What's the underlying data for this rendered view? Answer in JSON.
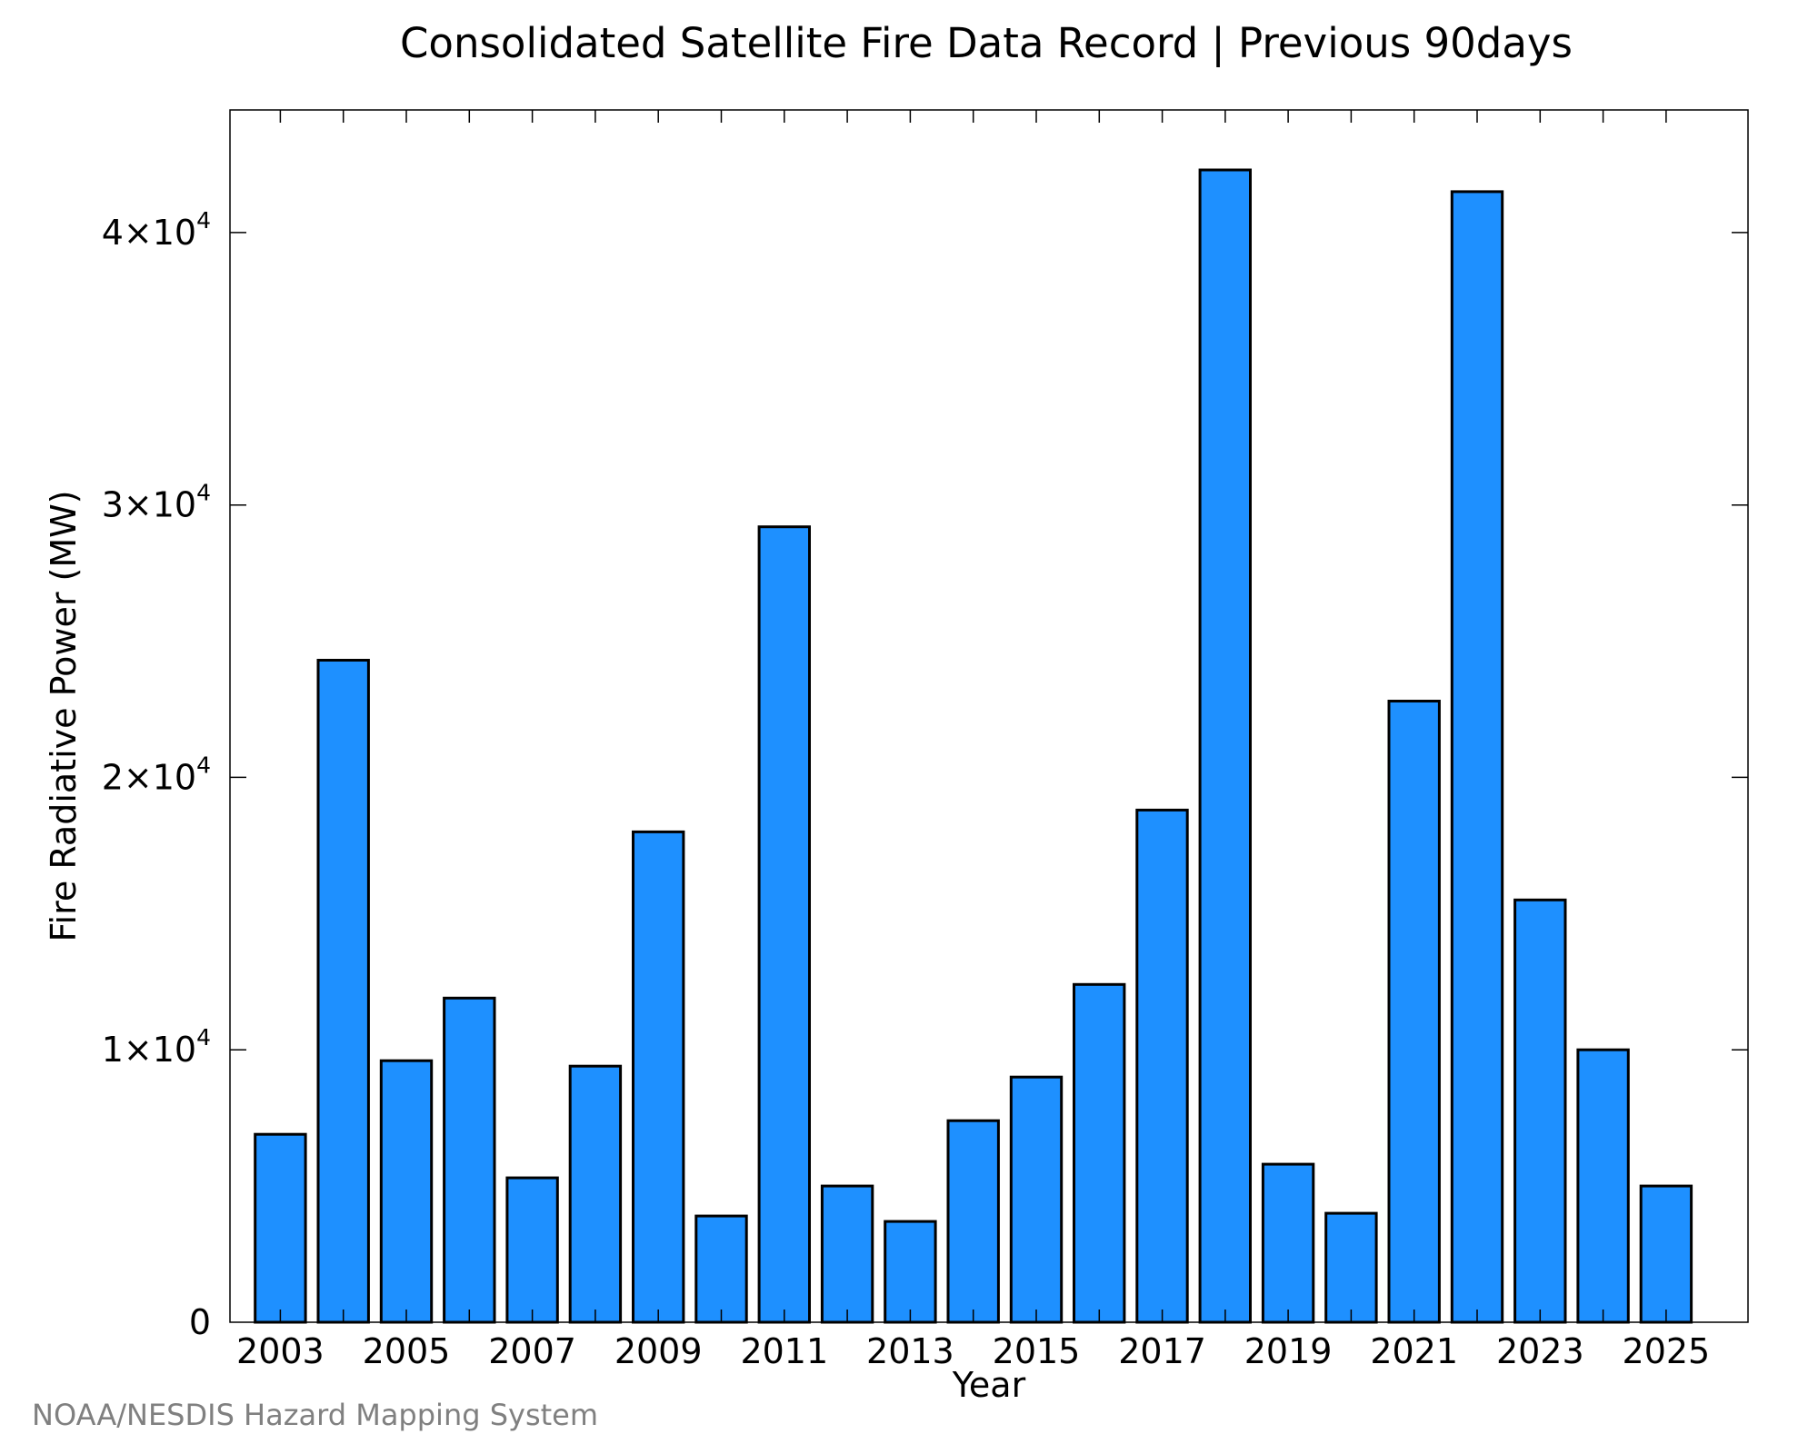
{
  "chart_data": {
    "type": "bar",
    "title": "Consolidated Satellite Fire Data Record | Previous 90days",
    "xlabel": "Year",
    "ylabel": "Fire Radiative Power (MW)",
    "categories": [
      "2003",
      "2004",
      "2005",
      "2006",
      "2007",
      "2008",
      "2009",
      "2010",
      "2011",
      "2012",
      "2013",
      "2014",
      "2015",
      "2016",
      "2017",
      "2018",
      "2019",
      "2020",
      "2021",
      "2022",
      "2023",
      "2024",
      "2025"
    ],
    "values": [
      6900,
      24300,
      9600,
      11900,
      5300,
      9400,
      18000,
      3900,
      29200,
      5000,
      3700,
      7400,
      9000,
      12400,
      18800,
      42300,
      5800,
      4000,
      22800,
      41500,
      15500,
      10000,
      5000
    ],
    "x_tick_labels": [
      "2003",
      "2005",
      "2007",
      "2009",
      "2011",
      "2013",
      "2015",
      "2017",
      "2019",
      "2021",
      "2023",
      "2025"
    ],
    "y_ticks": [
      {
        "value": 0,
        "mantissa": "0",
        "exponent": ""
      },
      {
        "value": 10000,
        "mantissa": "1×10",
        "exponent": "4"
      },
      {
        "value": 20000,
        "mantissa": "2×10",
        "exponent": "4"
      },
      {
        "value": 30000,
        "mantissa": "3×10",
        "exponent": "4"
      },
      {
        "value": 40000,
        "mantissa": "4×10",
        "exponent": "4"
      }
    ],
    "ylim": [
      0,
      44500
    ],
    "xlim": [
      2002.2,
      2026.3
    ],
    "grid": false,
    "bar_color": "#1e90ff",
    "bar_edge_color": "#000000"
  },
  "credit": "NOAA/NESDIS Hazard Mapping System"
}
